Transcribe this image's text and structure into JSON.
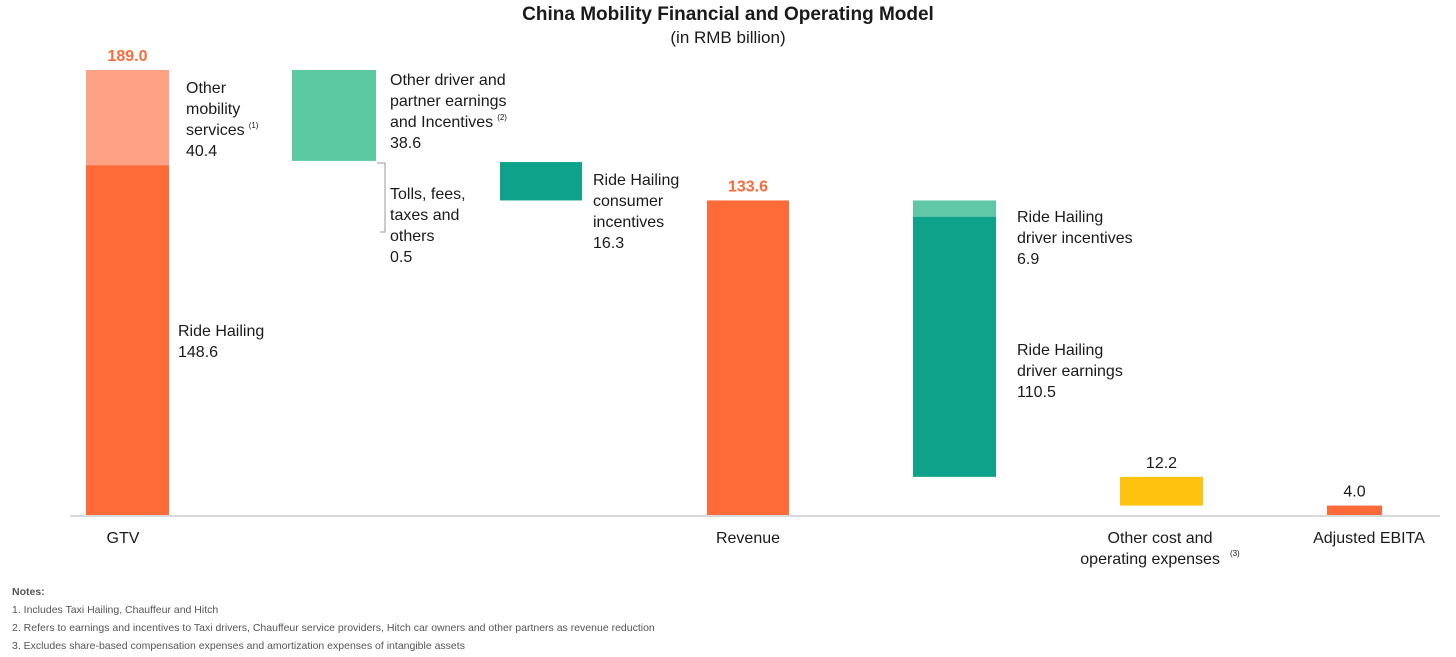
{
  "chart_data": {
    "type": "waterfall",
    "title": "China Mobility Financial and Operating Model",
    "subtitle": "(in RMB billion)",
    "unit": "RMB billion",
    "colors": {
      "orange": "#ff6a39",
      "peach": "#ffa184",
      "mint": "#5cc9a2",
      "teal": "#0ea28a",
      "lightteal": "#60c8a7",
      "yellow": "#ffc20e"
    },
    "segments": [
      {
        "id": "gtv-ride-hailing",
        "label_lines": [
          "Ride Hailing"
        ],
        "value": 148.6,
        "bottom": 0,
        "top": 148.6,
        "color": "orange",
        "column": "gtv"
      },
      {
        "id": "gtv-other-mobility",
        "label_lines": [
          "Other",
          "mobility",
          "services"
        ],
        "sup": "(1)",
        "value": 40.4,
        "bottom": 148.6,
        "top": 189.0,
        "color": "peach",
        "column": "gtv"
      },
      {
        "id": "other-driver-partner",
        "label_lines": [
          "Other driver and",
          "partner earnings",
          "and Incentives"
        ],
        "sup": "(2)",
        "value": 38.6,
        "bottom": 150.4,
        "top": 189.0,
        "color": "mint",
        "column": "step1"
      },
      {
        "id": "tolls-fees",
        "label_lines": [
          "Tolls, fees,",
          "taxes and",
          "others"
        ],
        "value": 0.5,
        "bottom": 149.9,
        "top": 150.4,
        "color": "none",
        "column": "step1"
      },
      {
        "id": "consumer-incentives",
        "label_lines": [
          "Ride Hailing",
          "consumer",
          "incentives"
        ],
        "value": 16.3,
        "bottom": 133.6,
        "top": 149.9,
        "color": "teal",
        "column": "step2"
      },
      {
        "id": "revenue",
        "label_lines": [],
        "value": 133.6,
        "bottom": 0,
        "top": 133.6,
        "color": "orange",
        "column": "revenue"
      },
      {
        "id": "driver-incentives",
        "label_lines": [
          "Ride Hailing",
          "driver incentives"
        ],
        "value": 6.9,
        "bottom": 126.7,
        "top": 133.6,
        "color": "lightteal",
        "column": "step3"
      },
      {
        "id": "driver-earnings",
        "label_lines": [
          "Ride Hailing",
          "driver earnings"
        ],
        "value": 110.5,
        "bottom": 16.2,
        "top": 126.7,
        "color": "teal",
        "column": "step3"
      },
      {
        "id": "other-cost",
        "label_lines": [],
        "value": 12.2,
        "bottom": 4.0,
        "top": 16.2,
        "color": "yellow",
        "column": "opex"
      },
      {
        "id": "adjusted-ebita",
        "label_lines": [],
        "value": 4.0,
        "bottom": 0,
        "top": 4.0,
        "color": "orange",
        "column": "ebita"
      }
    ],
    "totals": [
      {
        "column": "gtv",
        "value": "189.0"
      },
      {
        "column": "revenue",
        "value": "133.6"
      },
      {
        "column": "opex",
        "value": "12.2"
      },
      {
        "column": "ebita",
        "value": "4.0"
      }
    ],
    "categories": [
      {
        "column": "gtv",
        "lines": [
          "GTV"
        ]
      },
      {
        "column": "revenue",
        "lines": [
          "Revenue"
        ]
      },
      {
        "column": "opex",
        "lines": [
          "Other cost and",
          "operating expenses"
        ],
        "sup": "(3)"
      },
      {
        "column": "ebita",
        "lines": [
          "Adjusted EBITA"
        ]
      }
    ]
  },
  "notes": {
    "heading": "Notes:",
    "items": [
      "1. Includes Taxi Hailing, Chauffeur and Hitch",
      "2. Refers to earnings and incentives to Taxi drivers, Chauffeur service providers, Hitch car owners and other partners as revenue reduction",
      "3. Excludes share-based compensation expenses and amortization expenses of intangible assets"
    ]
  }
}
